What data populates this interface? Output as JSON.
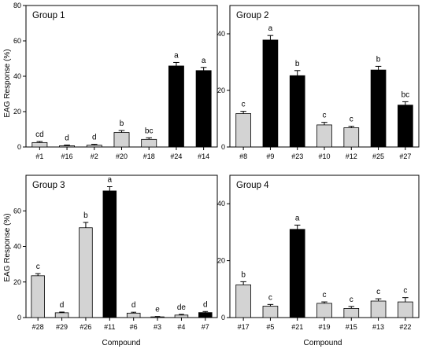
{
  "figure": {
    "xlabel": "Compound",
    "ylabel": "EAG Response  (%)"
  },
  "chart_data": [
    {
      "type": "bar",
      "title": "Group 1",
      "ylim": [
        0,
        80
      ],
      "yticks": [
        0,
        20,
        40,
        60,
        80
      ],
      "categories": [
        "#1",
        "#16",
        "#2",
        "#20",
        "#18",
        "#24",
        "#14"
      ],
      "values": [
        2.5,
        0.7,
        1.0,
        8.2,
        4.3,
        45.8,
        43.2
      ],
      "errors": [
        0.6,
        0.4,
        0.5,
        1.1,
        0.9,
        2.0,
        1.8
      ],
      "fills": [
        "light",
        "light",
        "light",
        "light",
        "light",
        "dark",
        "dark"
      ],
      "letters": [
        "cd",
        "d",
        "d",
        "b",
        "bc",
        "a",
        "a"
      ]
    },
    {
      "type": "bar",
      "title": "Group 2",
      "ylim": [
        0,
        50
      ],
      "yticks": [
        0,
        20,
        40
      ],
      "categories": [
        "#8",
        "#9",
        "#23",
        "#10",
        "#12",
        "#25",
        "#27"
      ],
      "values": [
        11.8,
        37.8,
        25.2,
        7.8,
        6.8,
        27.2,
        14.8
      ],
      "errors": [
        0.8,
        1.6,
        1.8,
        0.9,
        0.5,
        1.3,
        1.2
      ],
      "fills": [
        "light",
        "dark",
        "dark",
        "light",
        "light",
        "dark",
        "dark"
      ],
      "letters": [
        "c",
        "a",
        "b",
        "c",
        "c",
        "b",
        "bc"
      ]
    },
    {
      "type": "bar",
      "title": "Group 3",
      "ylim": [
        0,
        80
      ],
      "yticks": [
        0,
        20,
        40,
        60
      ],
      "categories": [
        "#28",
        "#29",
        "#26",
        "#11",
        "#6",
        "#3",
        "#4",
        "#7"
      ],
      "values": [
        23.5,
        2.7,
        50.5,
        71.2,
        2.5,
        0.4,
        1.4,
        2.8
      ],
      "errors": [
        1.2,
        0.4,
        3.0,
        2.4,
        0.5,
        0.2,
        0.4,
        0.6
      ],
      "fills": [
        "light",
        "light",
        "light",
        "dark",
        "light",
        "light",
        "light",
        "dark"
      ],
      "letters": [
        "c",
        "d",
        "b",
        "a",
        "d",
        "e",
        "de",
        "d"
      ]
    },
    {
      "type": "bar",
      "title": "Group 4",
      "ylim": [
        0,
        50
      ],
      "yticks": [
        0,
        20,
        40
      ],
      "categories": [
        "#17",
        "#5",
        "#21",
        "#19",
        "#15",
        "#13",
        "#22"
      ],
      "values": [
        11.5,
        4.0,
        31.0,
        5.0,
        3.2,
        5.8,
        5.5
      ],
      "errors": [
        1.1,
        0.6,
        1.5,
        0.5,
        0.7,
        0.8,
        1.5
      ],
      "fills": [
        "light",
        "light",
        "dark",
        "light",
        "light",
        "light",
        "light"
      ],
      "letters": [
        "b",
        "c",
        "a",
        "c",
        "c",
        "c",
        "c"
      ]
    }
  ],
  "colors": {
    "light": "#d3d3d3",
    "dark": "#000000",
    "axis": "#000000"
  }
}
